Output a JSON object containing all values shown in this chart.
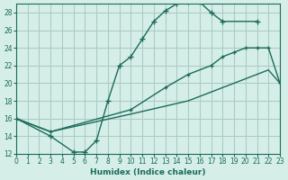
{
  "xlabel": "Humidex (Indice chaleur)",
  "bg_color": "#d6eee8",
  "grid_color": "#aaccc4",
  "line_color": "#1a6b5a",
  "xlim": [
    0,
    23
  ],
  "ylim": [
    12,
    29
  ],
  "xticks": [
    0,
    1,
    2,
    3,
    4,
    5,
    6,
    7,
    8,
    9,
    10,
    11,
    12,
    13,
    14,
    15,
    16,
    17,
    18,
    19,
    20,
    21,
    22,
    23
  ],
  "yticks": [
    12,
    14,
    16,
    18,
    20,
    22,
    24,
    26,
    28
  ],
  "curve1_x": [
    0,
    3,
    5,
    6,
    7,
    8,
    9,
    10,
    11,
    12,
    13,
    14,
    15,
    16,
    17,
    18,
    21
  ],
  "curve1_y": [
    16,
    14,
    12.2,
    12.2,
    13.5,
    18,
    22,
    23,
    25,
    27,
    28.2,
    29,
    29.2,
    29.2,
    28,
    27,
    27
  ],
  "curve2_x": [
    0,
    3,
    10,
    13,
    15,
    17,
    18,
    19,
    20,
    21,
    22,
    23
  ],
  "curve2_y": [
    16,
    14.5,
    17,
    19.5,
    21,
    22,
    23,
    23.5,
    24,
    24,
    24,
    20
  ],
  "curve3_x": [
    0,
    3,
    10,
    15,
    17,
    18,
    19,
    20,
    21,
    22,
    23
  ],
  "curve3_y": [
    16,
    14.5,
    16.5,
    18,
    19,
    19.5,
    20,
    20.5,
    21,
    21.5,
    20
  ]
}
